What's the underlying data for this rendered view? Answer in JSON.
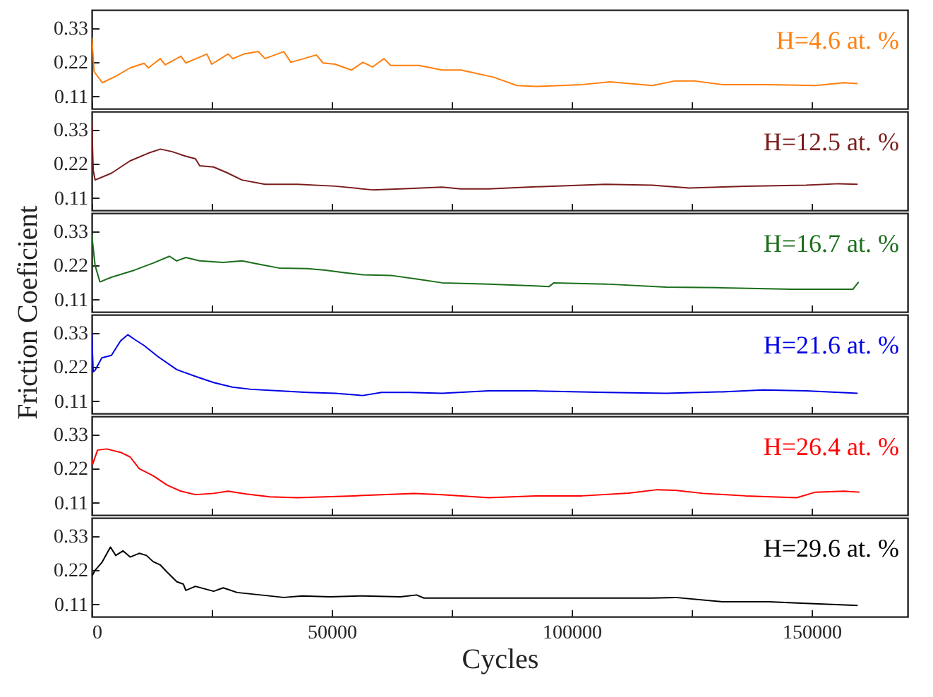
{
  "chart_data": [
    {
      "type": "line",
      "xlim": [
        0,
        170000
      ],
      "ylim": [
        0.07,
        0.39
      ],
      "yticks": [
        0.11,
        0.22,
        0.33
      ],
      "xticks": [
        0,
        {
          "value": 25000,
          "label": null
        },
        50000,
        {
          "value": 75000,
          "label": null
        },
        100000,
        {
          "value": 125000,
          "label": null
        },
        150000
      ],
      "tick_labels": "y",
      "x": [
        0,
        500,
        2200,
        5000,
        8000,
        10900,
        11800,
        14300,
        15300,
        18600,
        19600,
        24000,
        25000,
        28400,
        29400,
        31700,
        34700,
        36100,
        40000,
        41500,
        46800,
        48200,
        50700,
        54100,
        56500,
        58500,
        60900,
        62300,
        68200,
        73000,
        76900,
        79300,
        83700,
        88600,
        92500,
        102200,
        108000,
        116800,
        121600,
        125500,
        131400,
        141100,
        150800,
        156700,
        159600
      ],
      "series": [
        {
          "name": "H=4.6 at. %",
          "color": "#ff7f0e",
          "values": [
            0.3,
            0.19,
            0.154,
            0.175,
            0.202,
            0.217,
            0.202,
            0.232,
            0.212,
            0.24,
            0.218,
            0.247,
            0.214,
            0.247,
            0.232,
            0.247,
            0.255,
            0.232,
            0.255,
            0.22,
            0.244,
            0.218,
            0.214,
            0.195,
            0.22,
            0.205,
            0.232,
            0.21,
            0.21,
            0.195,
            0.195,
            0.187,
            0.172,
            0.145,
            0.142,
            0.148,
            0.157,
            0.145,
            0.16,
            0.16,
            0.148,
            0.148,
            0.145,
            0.154,
            0.151
          ]
        }
      ]
    },
    {
      "type": "line",
      "xlim": [
        0,
        170000
      ],
      "ylim": [
        0.07,
        0.39
      ],
      "yticks": [
        0.11,
        0.22,
        0.33
      ],
      "xticks": [
        0,
        {
          "value": 25000,
          "label": null
        },
        50000,
        {
          "value": 75000,
          "label": null
        },
        100000,
        {
          "value": 125000,
          "label": null
        },
        150000
      ],
      "tick_labels": "y",
      "x": [
        0,
        300,
        700,
        4100,
        8000,
        11800,
        14300,
        16700,
        19600,
        21600,
        22500,
        25400,
        28400,
        31300,
        36100,
        42900,
        50700,
        58500,
        64300,
        73000,
        76900,
        82700,
        92500,
        107100,
        116800,
        124500,
        136200,
        148800,
        155700,
        159600
      ],
      "series": [
        {
          "name": "H=12.5 at. %",
          "color": "#7b1c1c",
          "values": [
            0.36,
            0.2,
            0.168,
            0.19,
            0.23,
            0.255,
            0.268,
            0.26,
            0.245,
            0.237,
            0.214,
            0.21,
            0.19,
            0.168,
            0.154,
            0.154,
            0.148,
            0.136,
            0.139,
            0.145,
            0.139,
            0.139,
            0.146,
            0.154,
            0.151,
            0.142,
            0.148,
            0.151,
            0.156,
            0.154
          ]
        }
      ]
    },
    {
      "type": "line",
      "xlim": [
        0,
        170000
      ],
      "ylim": [
        0.07,
        0.39
      ],
      "yticks": [
        0.11,
        0.22,
        0.33
      ],
      "xticks": [
        0,
        {
          "value": 25000,
          "label": null
        },
        50000,
        {
          "value": 75000,
          "label": null
        },
        100000,
        {
          "value": 125000,
          "label": null
        },
        150000
      ],
      "tick_labels": "y",
      "ylabel": "Friction Coeficient",
      "x": [
        0,
        700,
        1700,
        4100,
        8900,
        12800,
        16200,
        17700,
        19600,
        22500,
        27400,
        31300,
        35200,
        39000,
        44900,
        48700,
        52600,
        56500,
        62300,
        68200,
        73000,
        82700,
        95300,
        96300,
        107100,
        119700,
        131400,
        145900,
        158600,
        159800
      ],
      "series": [
        {
          "name": "H=16.7 at. %",
          "color": "#1a6e1a",
          "values": [
            0.32,
            0.22,
            0.167,
            0.182,
            0.205,
            0.228,
            0.25,
            0.235,
            0.246,
            0.235,
            0.23,
            0.235,
            0.223,
            0.212,
            0.21,
            0.205,
            0.197,
            0.19,
            0.188,
            0.175,
            0.164,
            0.16,
            0.152,
            0.164,
            0.16,
            0.15,
            0.148,
            0.143,
            0.143,
            0.167
          ]
        }
      ]
    },
    {
      "type": "line",
      "xlim": [
        0,
        170000
      ],
      "ylim": [
        0.07,
        0.39
      ],
      "yticks": [
        0.11,
        0.22,
        0.33
      ],
      "xticks": [
        0,
        {
          "value": 25000,
          "label": null
        },
        50000,
        {
          "value": 75000,
          "label": null
        },
        100000,
        {
          "value": 125000,
          "label": null
        },
        150000
      ],
      "tick_labels": "y",
      "x": [
        0,
        300,
        700,
        2100,
        4100,
        6000,
        7500,
        8900,
        10900,
        13800,
        17700,
        21600,
        25400,
        29300,
        33200,
        39000,
        44900,
        50700,
        56500,
        60400,
        66200,
        73000,
        82700,
        92500,
        107100,
        119700,
        131400,
        139900,
        148800,
        159600
      ],
      "series": [
        {
          "name": "H=21.6 at. %",
          "color": "#0000e6",
          "values": [
            0.33,
            0.205,
            0.21,
            0.25,
            0.258,
            0.305,
            0.325,
            0.31,
            0.29,
            0.254,
            0.212,
            0.19,
            0.17,
            0.155,
            0.148,
            0.143,
            0.138,
            0.135,
            0.128,
            0.138,
            0.138,
            0.135,
            0.143,
            0.143,
            0.138,
            0.135,
            0.14,
            0.146,
            0.143,
            0.135
          ]
        }
      ]
    },
    {
      "type": "line",
      "xlim": [
        0,
        170000
      ],
      "ylim": [
        0.07,
        0.39
      ],
      "yticks": [
        0.11,
        0.22,
        0.33
      ],
      "xticks": [
        0,
        {
          "value": 25000,
          "label": null
        },
        50000,
        {
          "value": 75000,
          "label": null
        },
        100000,
        {
          "value": 125000,
          "label": null
        },
        150000
      ],
      "tick_labels": "y",
      "x": [
        0,
        200,
        1200,
        3100,
        6000,
        8000,
        9900,
        12800,
        15700,
        18600,
        21600,
        25400,
        28400,
        32200,
        37100,
        42900,
        48700,
        54600,
        60400,
        67200,
        73000,
        82700,
        92500,
        102200,
        111900,
        117800,
        121600,
        127400,
        136200,
        146900,
        150800,
        156700,
        160000
      ],
      "series": [
        {
          "name": "H=26.4 at. %",
          "color": "#ff0000",
          "values": [
            0.25,
            0.235,
            0.28,
            0.284,
            0.273,
            0.258,
            0.22,
            0.197,
            0.167,
            0.147,
            0.136,
            0.14,
            0.147,
            0.138,
            0.129,
            0.126,
            0.129,
            0.132,
            0.136,
            0.14,
            0.136,
            0.126,
            0.132,
            0.132,
            0.141,
            0.152,
            0.15,
            0.14,
            0.132,
            0.126,
            0.144,
            0.147,
            0.144
          ]
        }
      ]
    },
    {
      "type": "line",
      "xlim": [
        0,
        170000
      ],
      "ylim": [
        0.07,
        0.39
      ],
      "yticks": [
        0.11,
        0.22,
        0.33
      ],
      "xticks": [
        0,
        {
          "value": 25000,
          "label": null
        },
        50000,
        {
          "value": 75000,
          "label": null
        },
        100000,
        {
          "value": 125000,
          "label": null
        },
        150000
      ],
      "xlabel": "Cycles",
      "x": [
        0,
        700,
        2100,
        3900,
        5000,
        6500,
        8000,
        9900,
        11400,
        12800,
        14300,
        15700,
        17700,
        19100,
        19600,
        21600,
        25400,
        27400,
        30300,
        35200,
        40000,
        43900,
        49700,
        56500,
        64300,
        67700,
        69200,
        73000,
        82700,
        97300,
        116800,
        121600,
        131400,
        141100,
        146900,
        159600
      ],
      "series": [
        {
          "name": "H=29.6 at. %",
          "color": "#000000",
          "values": [
            0.2,
            0.22,
            0.245,
            0.295,
            0.268,
            0.283,
            0.263,
            0.275,
            0.268,
            0.248,
            0.237,
            0.214,
            0.183,
            0.175,
            0.155,
            0.168,
            0.152,
            0.163,
            0.148,
            0.14,
            0.132,
            0.137,
            0.134,
            0.137,
            0.134,
            0.14,
            0.13,
            0.13,
            0.13,
            0.13,
            0.13,
            0.132,
            0.118,
            0.118,
            0.114,
            0.106
          ]
        }
      ]
    }
  ]
}
